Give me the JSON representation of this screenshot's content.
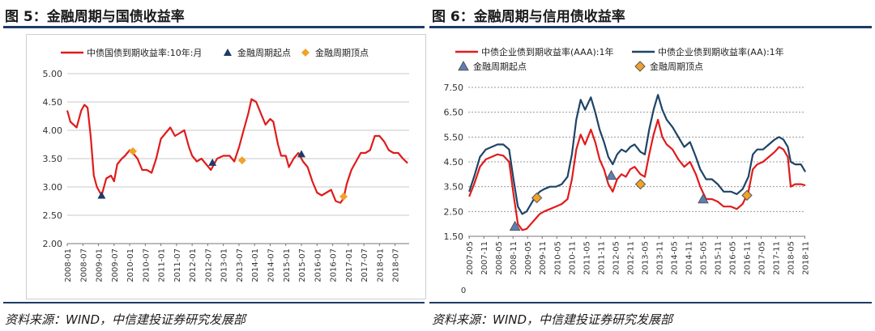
{
  "left": {
    "fig_title": "图 5：金融周期与国债收益率",
    "source": "资料来源：WIND，中信建投证券研究发展部",
    "chart_data": {
      "type": "line",
      "y_ticks": [
        "5.00",
        "4.50",
        "4.00",
        "3.50",
        "3.00",
        "2.50",
        "2.00"
      ],
      "x_ticks": [
        "2008-01",
        "2008-07",
        "2009-01",
        "2009-07",
        "2010-01",
        "2010-07",
        "2011-01",
        "2011-07",
        "2012-01",
        "2012-07",
        "2013-01",
        "2013-07",
        "2014-01",
        "2014-07",
        "2015-01",
        "2015-07",
        "2016-01",
        "2016-07",
        "2017-01",
        "2017-07",
        "2018-01",
        "2018-07"
      ],
      "ylim": [
        2.0,
        5.0
      ],
      "xlim": [
        2008.0,
        2018.95
      ],
      "grid": true,
      "legend_position": "top",
      "series": [
        {
          "name": "中债国债到期收益率:10年:月",
          "color": "#e01b1b",
          "points": [
            [
              2008.0,
              4.35
            ],
            [
              2008.1,
              4.15
            ],
            [
              2008.3,
              4.05
            ],
            [
              2008.45,
              4.35
            ],
            [
              2008.55,
              4.45
            ],
            [
              2008.65,
              4.4
            ],
            [
              2008.75,
              3.9
            ],
            [
              2008.85,
              3.2
            ],
            [
              2008.95,
              3.0
            ],
            [
              2009.1,
              2.85
            ],
            [
              2009.25,
              3.15
            ],
            [
              2009.4,
              3.2
            ],
            [
              2009.5,
              3.1
            ],
            [
              2009.6,
              3.4
            ],
            [
              2009.75,
              3.5
            ],
            [
              2009.85,
              3.55
            ],
            [
              2010.0,
              3.65
            ],
            [
              2010.1,
              3.6
            ],
            [
              2010.25,
              3.5
            ],
            [
              2010.4,
              3.3
            ],
            [
              2010.55,
              3.3
            ],
            [
              2010.7,
              3.25
            ],
            [
              2010.85,
              3.5
            ],
            [
              2011.0,
              3.85
            ],
            [
              2011.15,
              3.95
            ],
            [
              2011.3,
              4.05
            ],
            [
              2011.45,
              3.9
            ],
            [
              2011.6,
              3.95
            ],
            [
              2011.75,
              4.0
            ],
            [
              2011.9,
              3.7
            ],
            [
              2012.0,
              3.55
            ],
            [
              2012.15,
              3.45
            ],
            [
              2012.3,
              3.5
            ],
            [
              2012.45,
              3.4
            ],
            [
              2012.6,
              3.3
            ],
            [
              2012.8,
              3.5
            ],
            [
              2013.0,
              3.55
            ],
            [
              2013.2,
              3.55
            ],
            [
              2013.35,
              3.45
            ],
            [
              2013.5,
              3.7
            ],
            [
              2013.65,
              4.0
            ],
            [
              2013.8,
              4.3
            ],
            [
              2013.9,
              4.55
            ],
            [
              2014.05,
              4.5
            ],
            [
              2014.2,
              4.3
            ],
            [
              2014.35,
              4.1
            ],
            [
              2014.5,
              4.2
            ],
            [
              2014.6,
              4.15
            ],
            [
              2014.75,
              3.75
            ],
            [
              2014.85,
              3.55
            ],
            [
              2015.0,
              3.55
            ],
            [
              2015.1,
              3.35
            ],
            [
              2015.25,
              3.5
            ],
            [
              2015.4,
              3.6
            ],
            [
              2015.55,
              3.45
            ],
            [
              2015.7,
              3.35
            ],
            [
              2015.85,
              3.1
            ],
            [
              2016.0,
              2.9
            ],
            [
              2016.15,
              2.85
            ],
            [
              2016.3,
              2.9
            ],
            [
              2016.45,
              2.95
            ],
            [
              2016.6,
              2.75
            ],
            [
              2016.75,
              2.72
            ],
            [
              2016.85,
              2.8
            ],
            [
              2016.95,
              3.05
            ],
            [
              2017.1,
              3.3
            ],
            [
              2017.25,
              3.45
            ],
            [
              2017.4,
              3.6
            ],
            [
              2017.55,
              3.6
            ],
            [
              2017.7,
              3.65
            ],
            [
              2017.85,
              3.9
            ],
            [
              2018.0,
              3.9
            ],
            [
              2018.15,
              3.8
            ],
            [
              2018.3,
              3.65
            ],
            [
              2018.45,
              3.6
            ],
            [
              2018.6,
              3.6
            ],
            [
              2018.75,
              3.5
            ],
            [
              2018.9,
              3.42
            ]
          ]
        }
      ],
      "markers": [
        {
          "name": "金融周期起点",
          "color": "#1f3b66",
          "shape": "triangle",
          "points": [
            [
              2009.1,
              2.85
            ],
            [
              2012.65,
              3.43
            ],
            [
              2015.5,
              3.58
            ]
          ]
        },
        {
          "name": "金融周期顶点",
          "color": "#f0a32a",
          "shape": "diamond",
          "points": [
            [
              2010.1,
              3.63
            ],
            [
              2013.6,
              3.47
            ],
            [
              2016.85,
              2.83
            ]
          ]
        }
      ]
    }
  },
  "right": {
    "fig_title": "图 6：金融周期与信用债收益率",
    "source": "资料来源：WIND，中信建投证券研究发展部",
    "chart_data": {
      "type": "line",
      "y_ticks": [
        "7.50",
        "6.50",
        "5.50",
        "4.50",
        "3.50",
        "2.50",
        "1.50"
      ],
      "x_ticks": [
        "2007-05",
        "2007-11",
        "2008-05",
        "2008-11",
        "2009-05",
        "2009-11",
        "2010-05",
        "2010-11",
        "2011-05",
        "2011-11",
        "2012-05",
        "2012-11",
        "2013-05",
        "2013-11",
        "2014-05",
        "2014-11",
        "2015-05",
        "2015-11",
        "2016-05",
        "2016-11",
        "2017-05",
        "2017-11",
        "2018-05",
        "2018-11"
      ],
      "ylim": [
        1.5,
        7.5
      ],
      "xlim": [
        2007.3,
        2018.85
      ],
      "grid": true,
      "legend_position": "top",
      "extra_tick": "0",
      "series": [
        {
          "name": "中债企业债到期收益率(AAA):1年",
          "color": "#e01b1b",
          "points": [
            [
              2007.33,
              3.1
            ],
            [
              2007.5,
              3.6
            ],
            [
              2007.7,
              4.3
            ],
            [
              2007.9,
              4.6
            ],
            [
              2008.1,
              4.7
            ],
            [
              2008.3,
              4.8
            ],
            [
              2008.5,
              4.75
            ],
            [
              2008.7,
              4.5
            ],
            [
              2008.85,
              3.2
            ],
            [
              2009.0,
              2.0
            ],
            [
              2009.15,
              1.75
            ],
            [
              2009.3,
              1.8
            ],
            [
              2009.45,
              2.0
            ],
            [
              2009.6,
              2.2
            ],
            [
              2009.75,
              2.4
            ],
            [
              2009.9,
              2.5
            ],
            [
              2010.1,
              2.6
            ],
            [
              2010.3,
              2.7
            ],
            [
              2010.5,
              2.8
            ],
            [
              2010.7,
              3.0
            ],
            [
              2010.85,
              3.8
            ],
            [
              2011.0,
              5.0
            ],
            [
              2011.15,
              5.6
            ],
            [
              2011.3,
              5.2
            ],
            [
              2011.5,
              5.8
            ],
            [
              2011.65,
              5.3
            ],
            [
              2011.8,
              4.6
            ],
            [
              2011.95,
              4.2
            ],
            [
              2012.1,
              3.6
            ],
            [
              2012.25,
              3.3
            ],
            [
              2012.4,
              3.8
            ],
            [
              2012.55,
              4.0
            ],
            [
              2012.7,
              3.9
            ],
            [
              2012.85,
              4.2
            ],
            [
              2013.0,
              4.3
            ],
            [
              2013.2,
              4.0
            ],
            [
              2013.35,
              3.9
            ],
            [
              2013.5,
              4.8
            ],
            [
              2013.65,
              5.6
            ],
            [
              2013.8,
              6.2
            ],
            [
              2013.95,
              5.5
            ],
            [
              2014.1,
              5.2
            ],
            [
              2014.3,
              5.0
            ],
            [
              2014.5,
              4.6
            ],
            [
              2014.7,
              4.3
            ],
            [
              2014.9,
              4.5
            ],
            [
              2015.1,
              4.0
            ],
            [
              2015.25,
              3.5
            ],
            [
              2015.45,
              3.0
            ],
            [
              2015.65,
              3.0
            ],
            [
              2015.85,
              2.9
            ],
            [
              2016.05,
              2.7
            ],
            [
              2016.3,
              2.7
            ],
            [
              2016.5,
              2.6
            ],
            [
              2016.7,
              2.8
            ],
            [
              2016.9,
              3.3
            ],
            [
              2017.05,
              4.2
            ],
            [
              2017.2,
              4.4
            ],
            [
              2017.4,
              4.5
            ],
            [
              2017.6,
              4.7
            ],
            [
              2017.8,
              4.9
            ],
            [
              2017.95,
              5.1
            ],
            [
              2018.1,
              5.0
            ],
            [
              2018.25,
              4.7
            ],
            [
              2018.35,
              3.5
            ],
            [
              2018.5,
              3.6
            ],
            [
              2018.7,
              3.6
            ],
            [
              2018.85,
              3.55
            ]
          ]
        },
        {
          "name": "中债企业债到期收益率(AA):1年",
          "color": "#1e4466",
          "points": [
            [
              2007.33,
              3.3
            ],
            [
              2007.5,
              3.9
            ],
            [
              2007.7,
              4.7
            ],
            [
              2007.9,
              5.0
            ],
            [
              2008.1,
              5.1
            ],
            [
              2008.3,
              5.2
            ],
            [
              2008.5,
              5.2
            ],
            [
              2008.7,
              5.0
            ],
            [
              2008.85,
              3.8
            ],
            [
              2009.0,
              2.7
            ],
            [
              2009.15,
              2.4
            ],
            [
              2009.3,
              2.5
            ],
            [
              2009.45,
              2.8
            ],
            [
              2009.6,
              3.1
            ],
            [
              2009.75,
              3.3
            ],
            [
              2009.9,
              3.4
            ],
            [
              2010.1,
              3.5
            ],
            [
              2010.3,
              3.5
            ],
            [
              2010.5,
              3.6
            ],
            [
              2010.7,
              3.9
            ],
            [
              2010.85,
              4.8
            ],
            [
              2011.0,
              6.2
            ],
            [
              2011.15,
              7.0
            ],
            [
              2011.3,
              6.6
            ],
            [
              2011.5,
              7.1
            ],
            [
              2011.65,
              6.5
            ],
            [
              2011.8,
              5.8
            ],
            [
              2011.95,
              5.3
            ],
            [
              2012.1,
              4.7
            ],
            [
              2012.25,
              4.4
            ],
            [
              2012.4,
              4.8
            ],
            [
              2012.55,
              5.0
            ],
            [
              2012.7,
              4.9
            ],
            [
              2012.85,
              5.1
            ],
            [
              2013.0,
              5.2
            ],
            [
              2013.2,
              4.9
            ],
            [
              2013.35,
              4.8
            ],
            [
              2013.5,
              5.8
            ],
            [
              2013.65,
              6.6
            ],
            [
              2013.8,
              7.2
            ],
            [
              2013.95,
              6.6
            ],
            [
              2014.1,
              6.2
            ],
            [
              2014.3,
              5.9
            ],
            [
              2014.5,
              5.5
            ],
            [
              2014.7,
              5.1
            ],
            [
              2014.9,
              5.3
            ],
            [
              2015.1,
              4.7
            ],
            [
              2015.25,
              4.2
            ],
            [
              2015.45,
              3.8
            ],
            [
              2015.65,
              3.8
            ],
            [
              2015.85,
              3.6
            ],
            [
              2016.05,
              3.3
            ],
            [
              2016.3,
              3.3
            ],
            [
              2016.5,
              3.2
            ],
            [
              2016.7,
              3.4
            ],
            [
              2016.9,
              3.9
            ],
            [
              2017.05,
              4.8
            ],
            [
              2017.2,
              5.0
            ],
            [
              2017.4,
              5.0
            ],
            [
              2017.6,
              5.2
            ],
            [
              2017.8,
              5.4
            ],
            [
              2017.95,
              5.5
            ],
            [
              2018.1,
              5.4
            ],
            [
              2018.25,
              5.1
            ],
            [
              2018.35,
              4.5
            ],
            [
              2018.5,
              4.4
            ],
            [
              2018.7,
              4.4
            ],
            [
              2018.85,
              4.1
            ]
          ]
        }
      ],
      "markers": [
        {
          "name": "金融周期起点",
          "color": "#5b7fb8",
          "shape": "triangle",
          "points": [
            [
              2008.9,
              1.9
            ],
            [
              2012.2,
              3.95
            ],
            [
              2015.35,
              3.0
            ]
          ]
        },
        {
          "name": "金融周期顶点",
          "color": "#f0a32a",
          "shape": "diamond",
          "points": [
            [
              2009.65,
              3.05
            ],
            [
              2013.2,
              3.6
            ],
            [
              2016.85,
              3.15
            ]
          ]
        }
      ]
    }
  }
}
